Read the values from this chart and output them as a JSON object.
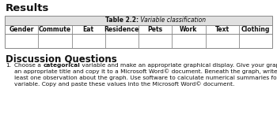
{
  "title": "Results",
  "table_caption_bold": "Table 2.2:",
  "table_caption_italic": " Variable classification",
  "columns": [
    "Gender",
    "Commute",
    "Eat",
    "Residence",
    "Pets",
    "Work",
    "Text",
    "Clothing"
  ],
  "section_title": "Discussion Questions",
  "discussion_lines": [
    "Choose a {categorical} variable and make an appropriate graphical display. Give your graph",
    "an appropriate title and copy it to a Microsoft Word© document. Beneath the graph, write at",
    "least one observation about the graph. Use software to calculate numerical summaries for the",
    "variable. Copy and paste these values into the Microsoft Word© document."
  ],
  "bg_color": "#ffffff",
  "table_header_bg": "#e0e0e0",
  "border_color": "#888888",
  "text_color": "#111111",
  "fs_title": 9.5,
  "fs_section": 8.5,
  "fs_table_header": 5.5,
  "fs_col": 5.5,
  "fs_body": 5.3
}
